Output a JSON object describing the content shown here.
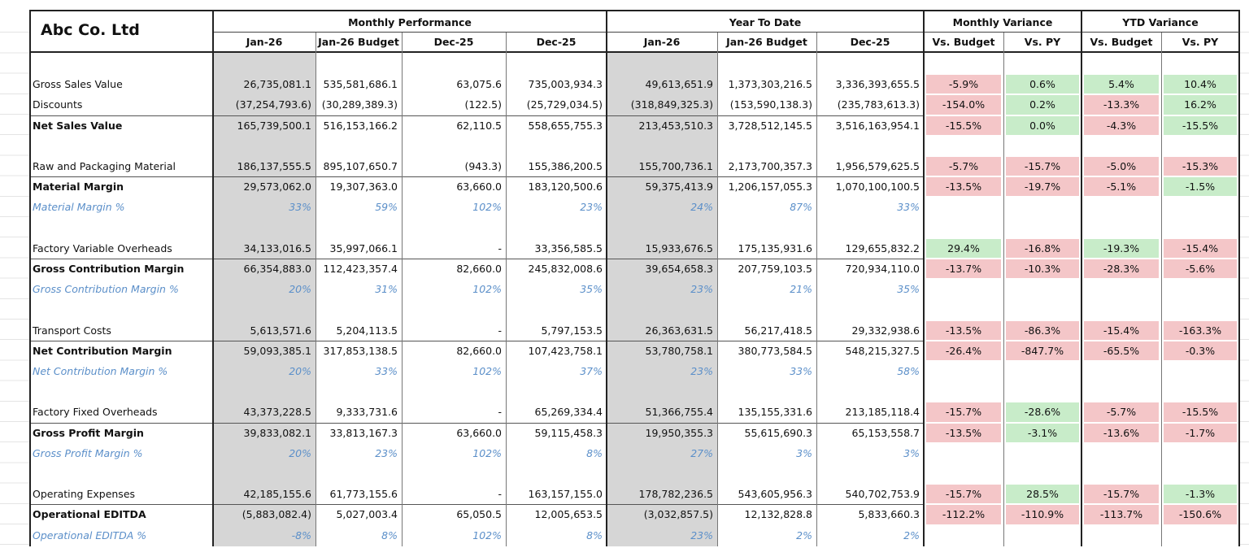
{
  "header": {
    "company": "Abc Co. Ltd",
    "groups": [
      "Monthly Performance",
      "Year To Date",
      "Monthly Variance",
      "YTD Variance"
    ],
    "columns": [
      "Jan-26",
      "Jan-26 Budget",
      "Dec-25",
      "Dec-25",
      "Jan-26",
      "Jan-26 Budget",
      "Dec-25",
      "Vs. Budget",
      "Vs. PY",
      "Vs. Budget",
      "Vs. PY"
    ]
  },
  "table": {
    "sections": [
      {
        "rows": [
          {
            "label": "Gross Sales Value",
            "style": "normal",
            "cells": [
              "26,735,081.1",
              "535,581,686.1",
              "63,075.6",
              "735,003,934.3",
              "49,613,651.9",
              "1,373,303,216.5",
              "3,336,393,655.5"
            ],
            "variance": [
              "-5.9%",
              "0.6%",
              "5.4%",
              "10.4%"
            ],
            "variance_colors": [
              "#f4c6c8",
              "#c8ecc9",
              "#c8ecc9",
              "#c8ecc9"
            ]
          },
          {
            "label": "Discounts",
            "style": "normal",
            "cells": [
              "(37,254,793.6)",
              "(30,289,389.3)",
              "(122.5)",
              "(25,729,034.5)",
              "(318,849,325.3)",
              "(153,590,138.3)",
              "(235,783,613.3)"
            ],
            "variance": [
              "-154.0%",
              "0.2%",
              "-13.3%",
              "16.2%"
            ],
            "variance_colors": [
              "#f4c6c8",
              "#c8ecc9",
              "#f4c6c8",
              "#c8ecc9"
            ]
          },
          {
            "label": "Net Sales Value",
            "style": "bold",
            "cells": [
              "165,739,500.1",
              "516,153,166.2",
              "62,110.5",
              "558,655,755.3",
              "213,453,510.3",
              "3,728,512,145.5",
              "3,516,163,954.1"
            ],
            "variance": [
              "-15.5%",
              "0.0%",
              "-4.3%",
              "-15.5%"
            ],
            "variance_colors": [
              "#f4c6c8",
              "#c8ecc9",
              "#f4c6c8",
              "#c8ecc9"
            ]
          }
        ]
      },
      {
        "rows": [
          {
            "label": "Raw and Packaging Material",
            "style": "normal",
            "cells": [
              "186,137,555.5",
              "895,107,650.7",
              "(943.3)",
              "155,386,200.5",
              "155,700,736.1",
              "2,173,700,357.3",
              "1,956,579,625.5"
            ],
            "variance": [
              "-5.7%",
              "-15.7%",
              "-5.0%",
              "-15.3%"
            ],
            "variance_colors": [
              "#f4c6c8",
              "#f4c6c8",
              "#f4c6c8",
              "#f4c6c8"
            ]
          },
          {
            "label": "Material Margin",
            "style": "bold",
            "cells": [
              "29,573,062.0",
              "19,307,363.0",
              "63,660.0",
              "183,120,500.6",
              "59,375,413.9",
              "1,206,157,055.3",
              "1,070,100,100.5"
            ],
            "variance": [
              "-13.5%",
              "-19.7%",
              "-5.1%",
              "-1.5%"
            ],
            "variance_colors": [
              "#f4c6c8",
              "#f4c6c8",
              "#f4c6c8",
              "#c8ecc9"
            ]
          },
          {
            "label": "Material Margin %",
            "style": "percent",
            "cells": [
              "33%",
              "59%",
              "102%",
              "23%",
              "24%",
              "87%",
              "33%"
            ]
          }
        ]
      },
      {
        "rows": [
          {
            "label": "Factory Variable Overheads",
            "style": "normal",
            "cells": [
              "34,133,016.5",
              "35,997,066.1",
              "-",
              "33,356,585.5",
              "15,933,676.5",
              "175,135,931.6",
              "129,655,832.2"
            ],
            "variance": [
              "29.4%",
              "-16.8%",
              "-19.3%",
              "-15.4%"
            ],
            "variance_colors": [
              "#c8ecc9",
              "#f4c6c8",
              "#c8ecc9",
              "#f4c6c8"
            ]
          },
          {
            "label": "Gross Contribution Margin",
            "style": "bold",
            "cells": [
              "66,354,883.0",
              "112,423,357.4",
              "82,660.0",
              "245,832,008.6",
              "39,654,658.3",
              "207,759,103.5",
              "720,934,110.0"
            ],
            "variance": [
              "-13.7%",
              "-10.3%",
              "-28.3%",
              "-5.6%"
            ],
            "variance_colors": [
              "#f4c6c8",
              "#f4c6c8",
              "#f4c6c8",
              "#f4c6c8"
            ]
          },
          {
            "label": "Gross Contribution Margin %",
            "style": "percent",
            "cells": [
              "20%",
              "31%",
              "102%",
              "35%",
              "23%",
              "21%",
              "35%"
            ]
          }
        ]
      },
      {
        "rows": [
          {
            "label": "Transport Costs",
            "style": "normal",
            "cells": [
              "5,613,571.6",
              "5,204,113.5",
              "-",
              "5,797,153.5",
              "26,363,631.5",
              "56,217,418.5",
              "29,332,938.6"
            ],
            "variance": [
              "-13.5%",
              "-86.3%",
              "-15.4%",
              "-163.3%"
            ],
            "variance_colors": [
              "#f4c6c8",
              "#f4c6c8",
              "#f4c6c8",
              "#f4c6c8"
            ]
          },
          {
            "label": "Net Contribution Margin",
            "style": "bold",
            "cells": [
              "59,093,385.1",
              "317,853,138.5",
              "82,660.0",
              "107,423,758.1",
              "53,780,758.1",
              "380,773,584.5",
              "548,215,327.5"
            ],
            "variance": [
              "-26.4%",
              "-847.7%",
              "-65.5%",
              "-0.3%"
            ],
            "variance_colors": [
              "#f4c6c8",
              "#f4c6c8",
              "#f4c6c8",
              "#f4c6c8"
            ]
          },
          {
            "label": "Net Contribution Margin %",
            "style": "percent",
            "cells": [
              "20%",
              "33%",
              "102%",
              "37%",
              "23%",
              "33%",
              "58%"
            ]
          }
        ]
      },
      {
        "rows": [
          {
            "label": "Factory Fixed Overheads",
            "style": "normal",
            "cells": [
              "43,373,228.5",
              "9,333,731.6",
              "-",
              "65,269,334.4",
              "51,366,755.4",
              "135,155,331.6",
              "213,185,118.4"
            ],
            "variance": [
              "-15.7%",
              "-28.6%",
              "-5.7%",
              "-15.5%"
            ],
            "variance_colors": [
              "#f4c6c8",
              "#c8ecc9",
              "#f4c6c8",
              "#f4c6c8"
            ]
          },
          {
            "label": "Gross Profit Margin",
            "style": "bold",
            "cells": [
              "39,833,082.1",
              "33,813,167.3",
              "63,660.0",
              "59,115,458.3",
              "19,950,355.3",
              "55,615,690.3",
              "65,153,558.7"
            ],
            "variance": [
              "-13.5%",
              "-3.1%",
              "-13.6%",
              "-1.7%"
            ],
            "variance_colors": [
              "#f4c6c8",
              "#c8ecc9",
              "#f4c6c8",
              "#f4c6c8"
            ]
          },
          {
            "label": "Gross Profit Margin %",
            "style": "percent",
            "cells": [
              "20%",
              "23%",
              "102%",
              "8%",
              "27%",
              "3%",
              "3%"
            ]
          }
        ]
      },
      {
        "rows": [
          {
            "label": "Operating Expenses",
            "style": "normal",
            "cells": [
              "42,185,155.6",
              "61,773,155.6",
              "-",
              "163,157,155.0",
              "178,782,236.5",
              "543,605,956.3",
              "540,702,753.9"
            ],
            "variance": [
              "-15.7%",
              "28.5%",
              "-15.7%",
              "-1.3%"
            ],
            "variance_colors": [
              "#f4c6c8",
              "#c8ecc9",
              "#f4c6c8",
              "#c8ecc9"
            ]
          },
          {
            "label": "Operational EDITDA",
            "style": "bold",
            "cells": [
              "(5,883,082.4)",
              "5,027,003.4",
              "65,050.5",
              "12,005,653.5",
              "(3,032,857.5)",
              "12,132,828.8",
              "5,833,660.3"
            ],
            "variance": [
              "-112.2%",
              "-110.9%",
              "-113.7%",
              "-150.6%"
            ],
            "variance_colors": [
              "#f4c6c8",
              "#f4c6c8",
              "#f4c6c8",
              "#f4c6c8"
            ]
          },
          {
            "label": "Operational EDITDA %",
            "style": "percent",
            "cells": [
              "-8%",
              "8%",
              "102%",
              "8%",
              "23%",
              "2%",
              "2%"
            ]
          }
        ]
      }
    ]
  }
}
